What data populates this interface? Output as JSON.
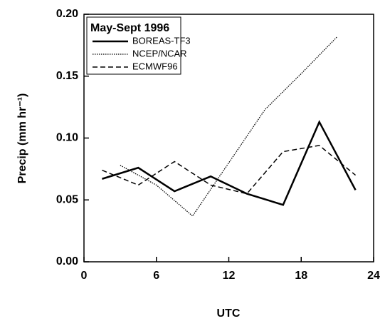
{
  "chart_data": {
    "type": "line",
    "legend_title": "May-Sept 1996",
    "xlabel": "UTC",
    "ylabel": "Precip (mm hr⁻¹)",
    "xlim": [
      0,
      24
    ],
    "xticks": [
      0,
      6,
      12,
      18,
      24
    ],
    "ylim": [
      0,
      0.2
    ],
    "yticks": [
      {
        "value": 0,
        "label": "0.00"
      },
      0.05,
      {
        "value": 0.1,
        "label": "0.10"
      },
      0.15,
      {
        "value": 0.2,
        "label": "0.20"
      }
    ],
    "legend": "upper left",
    "series": [
      {
        "name": "BOREAS-TF3",
        "color": "#000000",
        "dash": "solid",
        "x": [
          1.5,
          4.5,
          7.5,
          10.5,
          13.5,
          16.5,
          19.5,
          22.5
        ],
        "values": [
          0.067,
          0.076,
          0.057,
          0.069,
          0.055,
          0.046,
          0.113,
          0.058
        ]
      },
      {
        "name": "NCEP/NCAR",
        "color": "#000000",
        "dash": "dotted",
        "x": [
          3,
          6,
          9,
          12,
          15,
          18,
          21
        ],
        "values": [
          0.078,
          0.062,
          0.037,
          0.08,
          0.123,
          0.152,
          0.182
        ]
      },
      {
        "name": "ECMWF96",
        "color": "#000000",
        "dash": "dashed",
        "x": [
          1.5,
          4.5,
          7.5,
          10.5,
          13.5,
          16.5,
          19.5,
          22.5
        ],
        "values": [
          0.074,
          0.062,
          0.081,
          0.062,
          0.055,
          0.089,
          0.094,
          0.07
        ]
      }
    ]
  }
}
